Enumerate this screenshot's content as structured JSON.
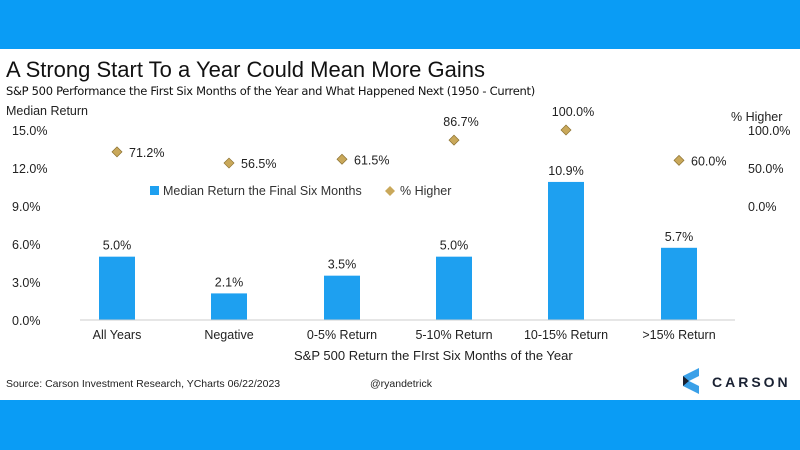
{
  "title": "A Strong Start To a Year Could Mean More Gains",
  "subtitle": "S&P 500 Performance the First Six Months of the Year and What Happened Next (1950 - Current)",
  "source": "Source: Carson Investment Research, YCharts 06/22/2023",
  "handle": "@ryandetrick",
  "logo_text": "CARSON",
  "colors": {
    "band": "#0a9cf5",
    "bar": "#1ea0f0",
    "diamond": "#c9a85a"
  },
  "chart_data": {
    "type": "bar",
    "title": "A Strong Start To a Year Could Mean More Gains",
    "xlabel": "S&P 500 Return the FIrst Six Months of the Year",
    "ylabel": "Median Return",
    "y2label": "% Higher",
    "ylim": [
      0,
      15
    ],
    "y2lim": [
      0,
      100
    ],
    "yticks": [
      "0.0%",
      "3.0%",
      "6.0%",
      "9.0%",
      "12.0%",
      "15.0%"
    ],
    "y2ticks": [
      "0.0%",
      "50.0%",
      "100.0%"
    ],
    "categories": [
      "All Years",
      "Negative",
      "0-5% Return",
      "5-10% Return",
      "10-15% Return",
      ">15% Return"
    ],
    "series": [
      {
        "name": "Median Return the Final Six Months",
        "type": "bar",
        "values": [
          5.0,
          2.1,
          3.5,
          5.0,
          10.9,
          5.7
        ],
        "labels": [
          "5.0%",
          "2.1%",
          "3.5%",
          "5.0%",
          "10.9%",
          "5.7%"
        ]
      },
      {
        "name": "% Higher",
        "type": "scatter",
        "axis": "right",
        "values": [
          71.2,
          56.5,
          61.5,
          86.7,
          100.0,
          60.0
        ],
        "labels": [
          "71.2%",
          "56.5%",
          "61.5%",
          "86.7%",
          "100.0%",
          "60.0%"
        ]
      }
    ],
    "legend": "center"
  }
}
